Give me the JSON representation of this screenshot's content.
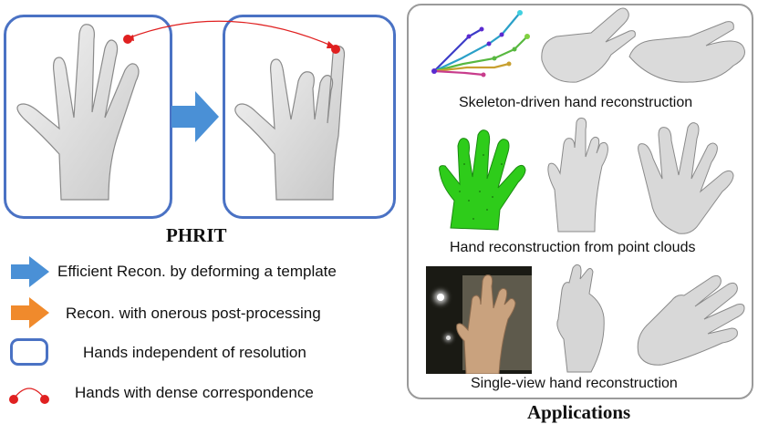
{
  "left": {
    "title": "PHRIT",
    "legend": [
      {
        "icon": "blue-arrow-icon",
        "text": "Efficient Recon. by deforming a template",
        "color": "#4a90d6"
      },
      {
        "icon": "orange-arrow-icon",
        "text": "Recon. with onerous post-processing",
        "color": "#f08a2c"
      },
      {
        "icon": "rounded-box-icon",
        "text": "Hands independent of resolution",
        "color": "#4a72c4"
      },
      {
        "icon": "correspondence-arc-icon",
        "text": "Hands with dense correspondence",
        "color": "#e02020"
      }
    ]
  },
  "applications": {
    "title": "Applications",
    "rows": [
      {
        "caption": "Skeleton-driven hand reconstruction"
      },
      {
        "caption": "Hand reconstruction from point clouds"
      },
      {
        "caption": "Single-view hand reconstruction"
      }
    ]
  },
  "colors": {
    "box_blue": "#4a72c4",
    "arrow_blue": "#4a90d6",
    "arrow_orange": "#f08a2c",
    "marker_red": "#e02020",
    "point_cloud_green": "#2ecc1a",
    "frame_gray": "#9a9a9a"
  }
}
